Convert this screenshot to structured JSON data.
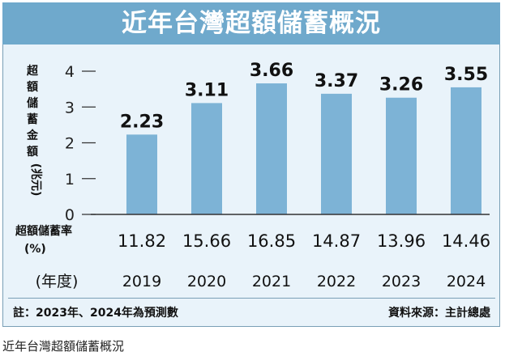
{
  "title": "近年台灣超額儲蓄概況",
  "chart_data": {
    "type": "bar",
    "title": "近年台灣超額儲蓄概況",
    "ylabel_chars": [
      "超",
      "額",
      "儲",
      "蓄",
      "金",
      "額"
    ],
    "ylabel_unit": "(兆元)",
    "ylim": [
      0,
      4
    ],
    "yticks": [
      0,
      1,
      2,
      3,
      4
    ],
    "categories": [
      "2019",
      "2020",
      "2021",
      "2022",
      "2023",
      "2024"
    ],
    "values": [
      2.23,
      3.11,
      3.66,
      3.37,
      3.26,
      3.55
    ],
    "value_labels": [
      "2.23",
      "3.11",
      "3.66",
      "3.37",
      "3.26",
      "3.55"
    ],
    "rate_label": "超額儲蓄率",
    "rate_unit": "(%)",
    "rates": [
      "11.82",
      "15.66",
      "16.85",
      "14.87",
      "13.96",
      "14.46"
    ],
    "xlabel": "(年度)",
    "bar_color": "#7db3d6"
  },
  "footer": {
    "note": "註：2023年、2024年為預測數",
    "source": "資料來源：主計總處"
  },
  "caption": "近年台灣超額儲蓄概況"
}
